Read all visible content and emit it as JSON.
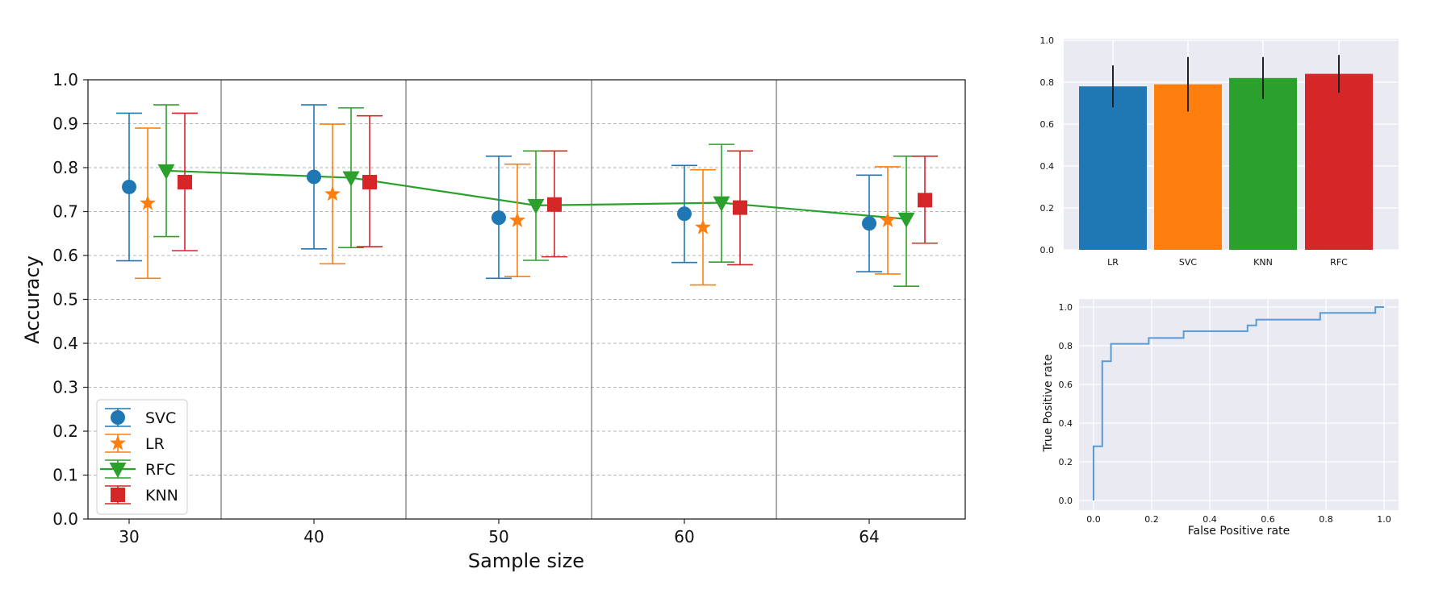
{
  "chart_data": [
    {
      "type": "scatter",
      "xlabel": "Sample size",
      "ylabel": "Accuracy",
      "categories": [
        "30",
        "40",
        "50",
        "60",
        "64"
      ],
      "ylim": [
        0.0,
        1.0
      ],
      "yticks": [
        "0.0",
        "0.1",
        "0.2",
        "0.3",
        "0.4",
        "0.5",
        "0.6",
        "0.7",
        "0.8",
        "0.9",
        "1.0"
      ],
      "grid": "horizontal dashed",
      "legend_position": "lower-left",
      "series": [
        {
          "name": "SVC",
          "marker": "circle",
          "color": "#1f77b4",
          "values": [
            0.756,
            0.779,
            0.686,
            0.695,
            0.673
          ],
          "low": [
            0.588,
            0.615,
            0.548,
            0.584,
            0.563
          ],
          "high": [
            0.924,
            0.943,
            0.826,
            0.805,
            0.783
          ]
        },
        {
          "name": "LR",
          "marker": "star",
          "color": "#ff7f0e",
          "values": [
            0.719,
            0.74,
            0.68,
            0.664,
            0.68
          ],
          "low": [
            0.548,
            0.581,
            0.552,
            0.533,
            0.558
          ],
          "high": [
            0.89,
            0.899,
            0.808,
            0.795,
            0.802
          ]
        },
        {
          "name": "RFC",
          "marker": "triangle-down",
          "color": "#2ca02c",
          "values": [
            0.793,
            0.777,
            0.714,
            0.72,
            0.683
          ],
          "low": [
            0.643,
            0.618,
            0.589,
            0.585,
            0.53
          ],
          "high": [
            0.943,
            0.936,
            0.838,
            0.853,
            0.826
          ],
          "connected": true
        },
        {
          "name": "KNN",
          "marker": "square",
          "color": "#d62728",
          "values": [
            0.767,
            0.767,
            0.716,
            0.709,
            0.726
          ],
          "low": [
            0.611,
            0.62,
            0.597,
            0.579,
            0.628
          ],
          "high": [
            0.924,
            0.918,
            0.838,
            0.838,
            0.826
          ]
        }
      ]
    },
    {
      "type": "bar",
      "categories": [
        "LR",
        "SVC",
        "KNN",
        "RFC"
      ],
      "values": [
        0.78,
        0.79,
        0.82,
        0.84
      ],
      "errors": [
        0.1,
        0.13,
        0.1,
        0.09
      ],
      "colors": [
        "#1f77b4",
        "#ff7f0e",
        "#2ca02c",
        "#d62728"
      ],
      "ylim": [
        0.0,
        1.0
      ],
      "yticks": [
        "0.0",
        "0.2",
        "0.4",
        "0.6",
        "0.8",
        "1.0"
      ],
      "grid": "on"
    },
    {
      "type": "line",
      "xlabel": "False Positive rate",
      "ylabel": "True Positive rate",
      "xlim": [
        0.0,
        1.0
      ],
      "ylim": [
        0.0,
        1.0
      ],
      "xticks": [
        "0.0",
        "0.2",
        "0.4",
        "0.6",
        "0.8",
        "1.0"
      ],
      "yticks": [
        "0.0",
        "0.2",
        "0.4",
        "0.6",
        "0.8",
        "1.0"
      ],
      "grid": "on",
      "color": "#5b9bd5",
      "points": [
        [
          0.0,
          0.0
        ],
        [
          0.0,
          0.28
        ],
        [
          0.03,
          0.28
        ],
        [
          0.03,
          0.72
        ],
        [
          0.06,
          0.72
        ],
        [
          0.06,
          0.81
        ],
        [
          0.19,
          0.81
        ],
        [
          0.19,
          0.84
        ],
        [
          0.31,
          0.84
        ],
        [
          0.31,
          0.875
        ],
        [
          0.53,
          0.875
        ],
        [
          0.53,
          0.905
        ],
        [
          0.56,
          0.905
        ],
        [
          0.56,
          0.935
        ],
        [
          0.78,
          0.935
        ],
        [
          0.78,
          0.97
        ],
        [
          0.97,
          0.97
        ],
        [
          0.97,
          1.0
        ],
        [
          1.0,
          1.0
        ]
      ]
    }
  ]
}
